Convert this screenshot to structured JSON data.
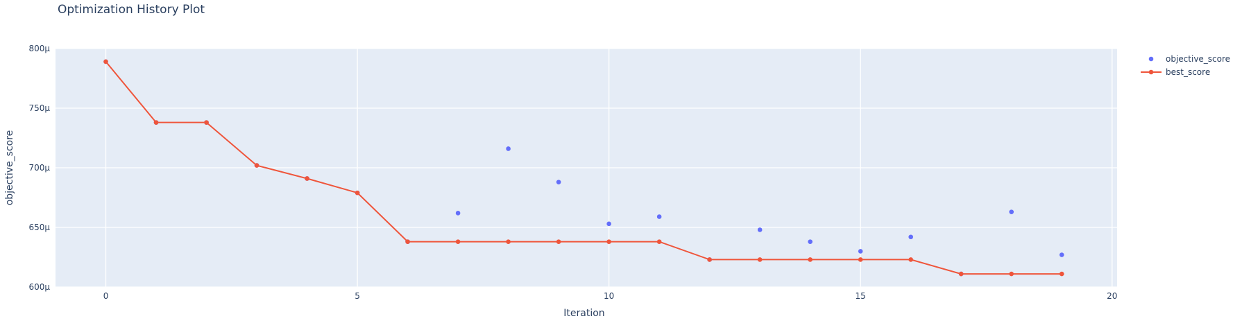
{
  "title": "Optimization History Plot",
  "chart_data": {
    "type": "line",
    "title": "Optimization History Plot",
    "xlabel": "Iteration",
    "ylabel": "objective_score",
    "xlim": [
      -1,
      20.1
    ],
    "ylim": [
      600,
      800
    ],
    "x_ticks": [
      0,
      5,
      10,
      15,
      20
    ],
    "y_ticks": [
      600,
      650,
      700,
      750,
      800
    ],
    "y_tick_labels": [
      "600μ",
      "650μ",
      "700μ",
      "750μ",
      "800μ"
    ],
    "grid": true,
    "legend_position": "top-right",
    "series": [
      {
        "name": "objective_score",
        "mode": "markers",
        "color": "#636efa",
        "x": [
          0,
          1,
          2,
          3,
          4,
          5,
          6,
          7,
          8,
          9,
          10,
          11,
          12,
          13,
          14,
          15,
          16,
          17,
          18,
          19
        ],
        "values": [
          789,
          738,
          738,
          702,
          691,
          679,
          638,
          662,
          716,
          688,
          653,
          659,
          623,
          648,
          638,
          630,
          642,
          611,
          663,
          627
        ]
      },
      {
        "name": "best_score",
        "mode": "lines+markers",
        "color": "#ef553b",
        "x": [
          0,
          1,
          2,
          3,
          4,
          5,
          6,
          7,
          8,
          9,
          10,
          11,
          12,
          13,
          14,
          15,
          16,
          17,
          18,
          19
        ],
        "values": [
          789,
          738,
          738,
          702,
          691,
          679,
          638,
          638,
          638,
          638,
          638,
          638,
          623,
          623,
          623,
          623,
          623,
          611,
          611,
          611
        ]
      }
    ]
  }
}
